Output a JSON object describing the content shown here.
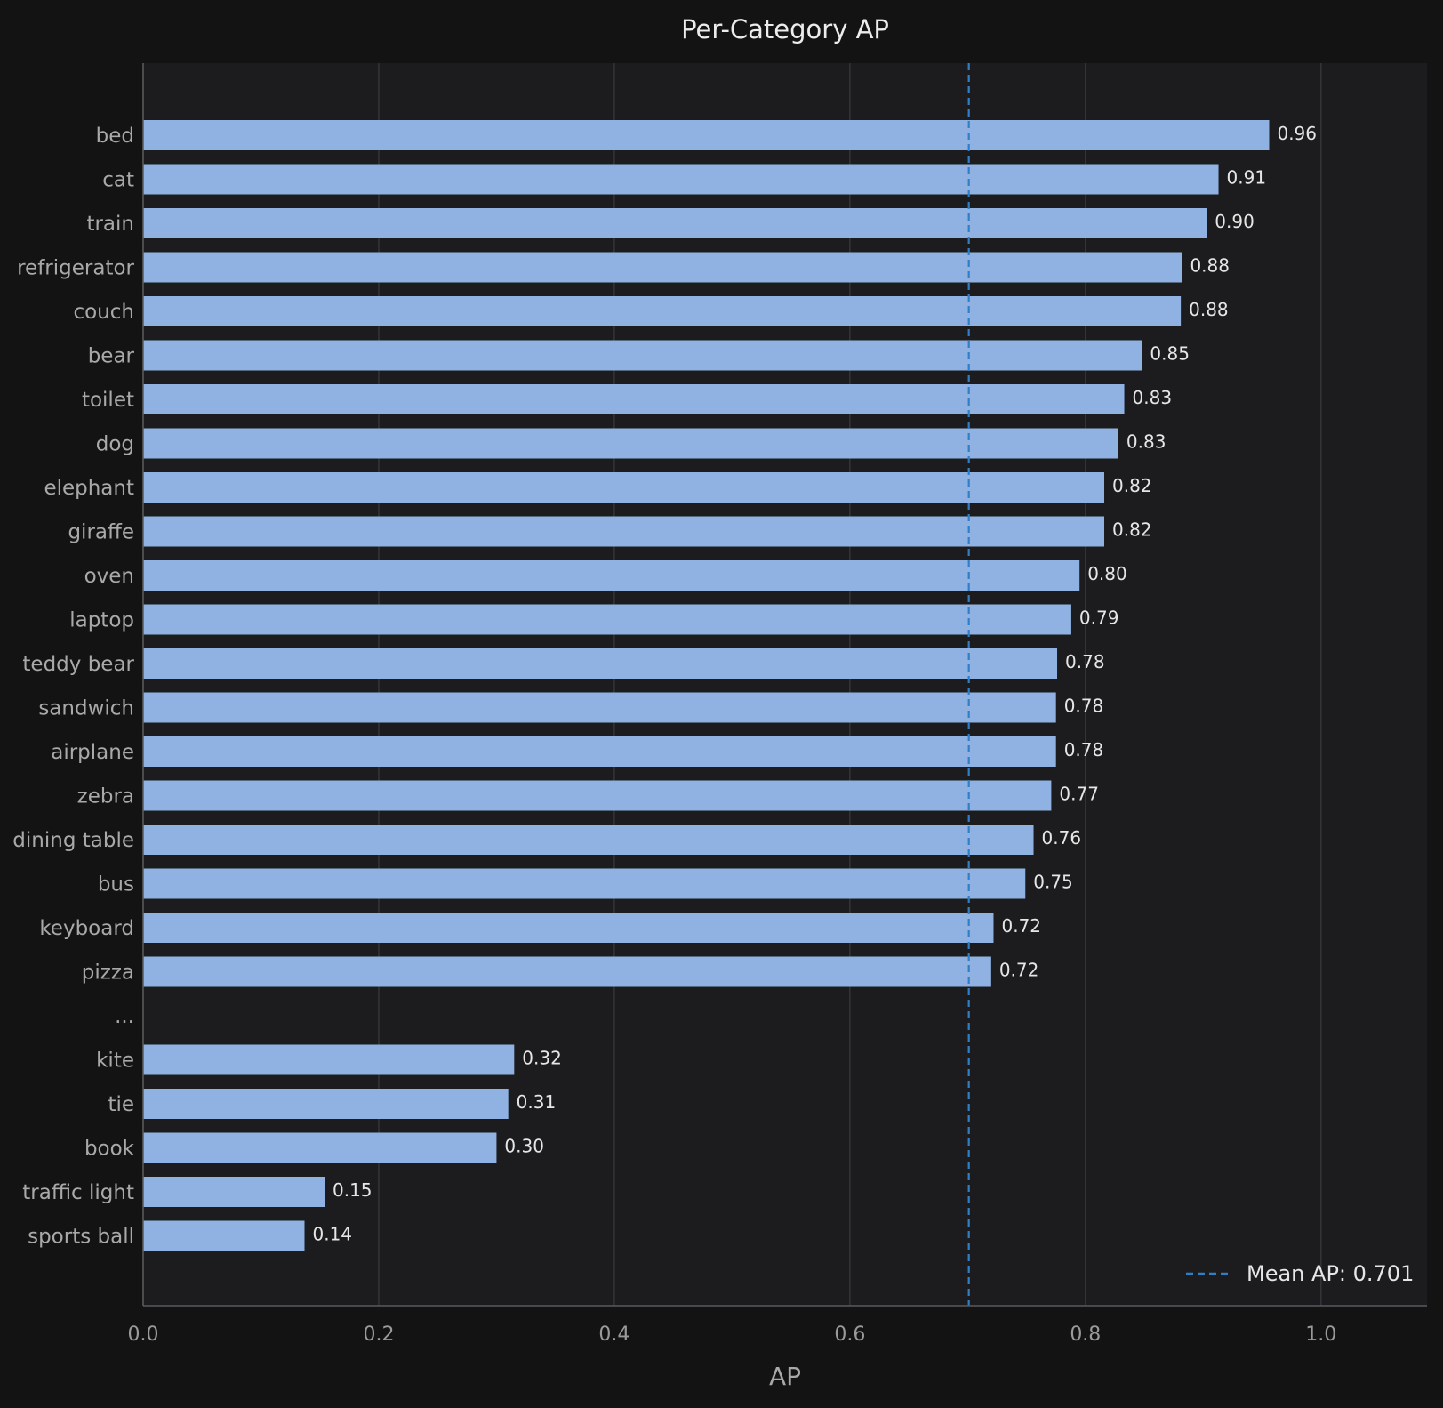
{
  "chart_data": {
    "type": "bar",
    "orientation": "horizontal",
    "title": "Per-Category AP",
    "xlabel": "AP",
    "ylabel": "",
    "xlim": [
      0,
      1.09
    ],
    "xticks": [
      "0.0",
      "0.2",
      "0.4",
      "0.6",
      "0.8",
      "1.0"
    ],
    "grid": "vertical",
    "categories": [
      "bed",
      "cat",
      "train",
      "refrigerator",
      "couch",
      "bear",
      "toilet",
      "dog",
      "elephant",
      "giraffe",
      "oven",
      "laptop",
      "teddy bear",
      "sandwich",
      "airplane",
      "zebra",
      "dining table",
      "bus",
      "keyboard",
      "pizza",
      "...",
      "kite",
      "tie",
      "book",
      "traffic light",
      "sports ball"
    ],
    "values": [
      0.956,
      0.913,
      0.903,
      0.882,
      0.881,
      0.848,
      0.833,
      0.828,
      0.816,
      0.816,
      0.795,
      0.788,
      0.776,
      0.775,
      0.775,
      0.771,
      0.756,
      0.749,
      0.722,
      0.72,
      null,
      0.315,
      0.31,
      0.3,
      0.154,
      0.137
    ],
    "value_labels": [
      "0.96",
      "0.91",
      "0.90",
      "0.88",
      "0.88",
      "0.85",
      "0.83",
      "0.83",
      "0.82",
      "0.82",
      "0.80",
      "0.79",
      "0.78",
      "0.78",
      "0.78",
      "0.77",
      "0.76",
      "0.75",
      "0.72",
      "0.72",
      "",
      "0.32",
      "0.31",
      "0.30",
      "0.15",
      "0.14"
    ],
    "mean_line": {
      "value": 0.701,
      "label": "Mean AP: 0.701"
    },
    "legend": "bottom-right",
    "colors": {
      "bar": "#8fb2e3",
      "mean_line": "#2e7fc6",
      "page_background": "#131314",
      "plot_background": "#1c1c1e",
      "grid": "#38383c"
    }
  }
}
